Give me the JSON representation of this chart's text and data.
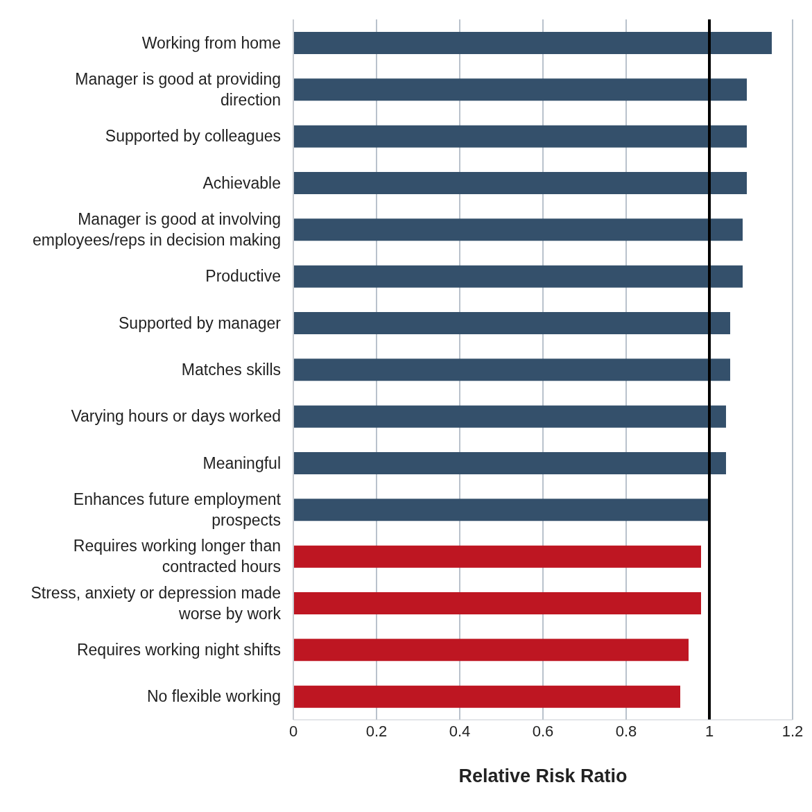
{
  "chart_data": {
    "type": "bar",
    "orientation": "horizontal",
    "xlabel": "Relative Risk Ratio",
    "categories": [
      "Working from home",
      "Manager is good at providing direction",
      "Supported by colleagues",
      "Achievable",
      "Manager is good at involving employees/reps in decision making",
      "Productive",
      "Supported by manager",
      "Matches skills",
      "Varying hours or days worked",
      "Meaningful",
      "Enhances future employment prospects",
      "Requires working longer than contracted hours",
      "Stress, anxiety or depression made worse by work",
      "Requires working night shifts",
      "No flexible working"
    ],
    "values": [
      1.15,
      1.09,
      1.09,
      1.09,
      1.08,
      1.08,
      1.05,
      1.05,
      1.04,
      1.04,
      1.0,
      0.98,
      0.98,
      0.95,
      0.93
    ],
    "colors": [
      "#34506b",
      "#34506b",
      "#34506b",
      "#34506b",
      "#34506b",
      "#34506b",
      "#34506b",
      "#34506b",
      "#34506b",
      "#34506b",
      "#34506b",
      "#be1622",
      "#be1622",
      "#be1622",
      "#be1622"
    ],
    "xlim": [
      0,
      1.2
    ],
    "xticks": [
      0,
      0.2,
      0.4,
      0.6,
      0.8,
      1,
      1.2
    ],
    "grid": "x",
    "ref_lines": [
      {
        "axis": "x",
        "value": 1,
        "color": "#000000"
      }
    ],
    "legend": false
  }
}
